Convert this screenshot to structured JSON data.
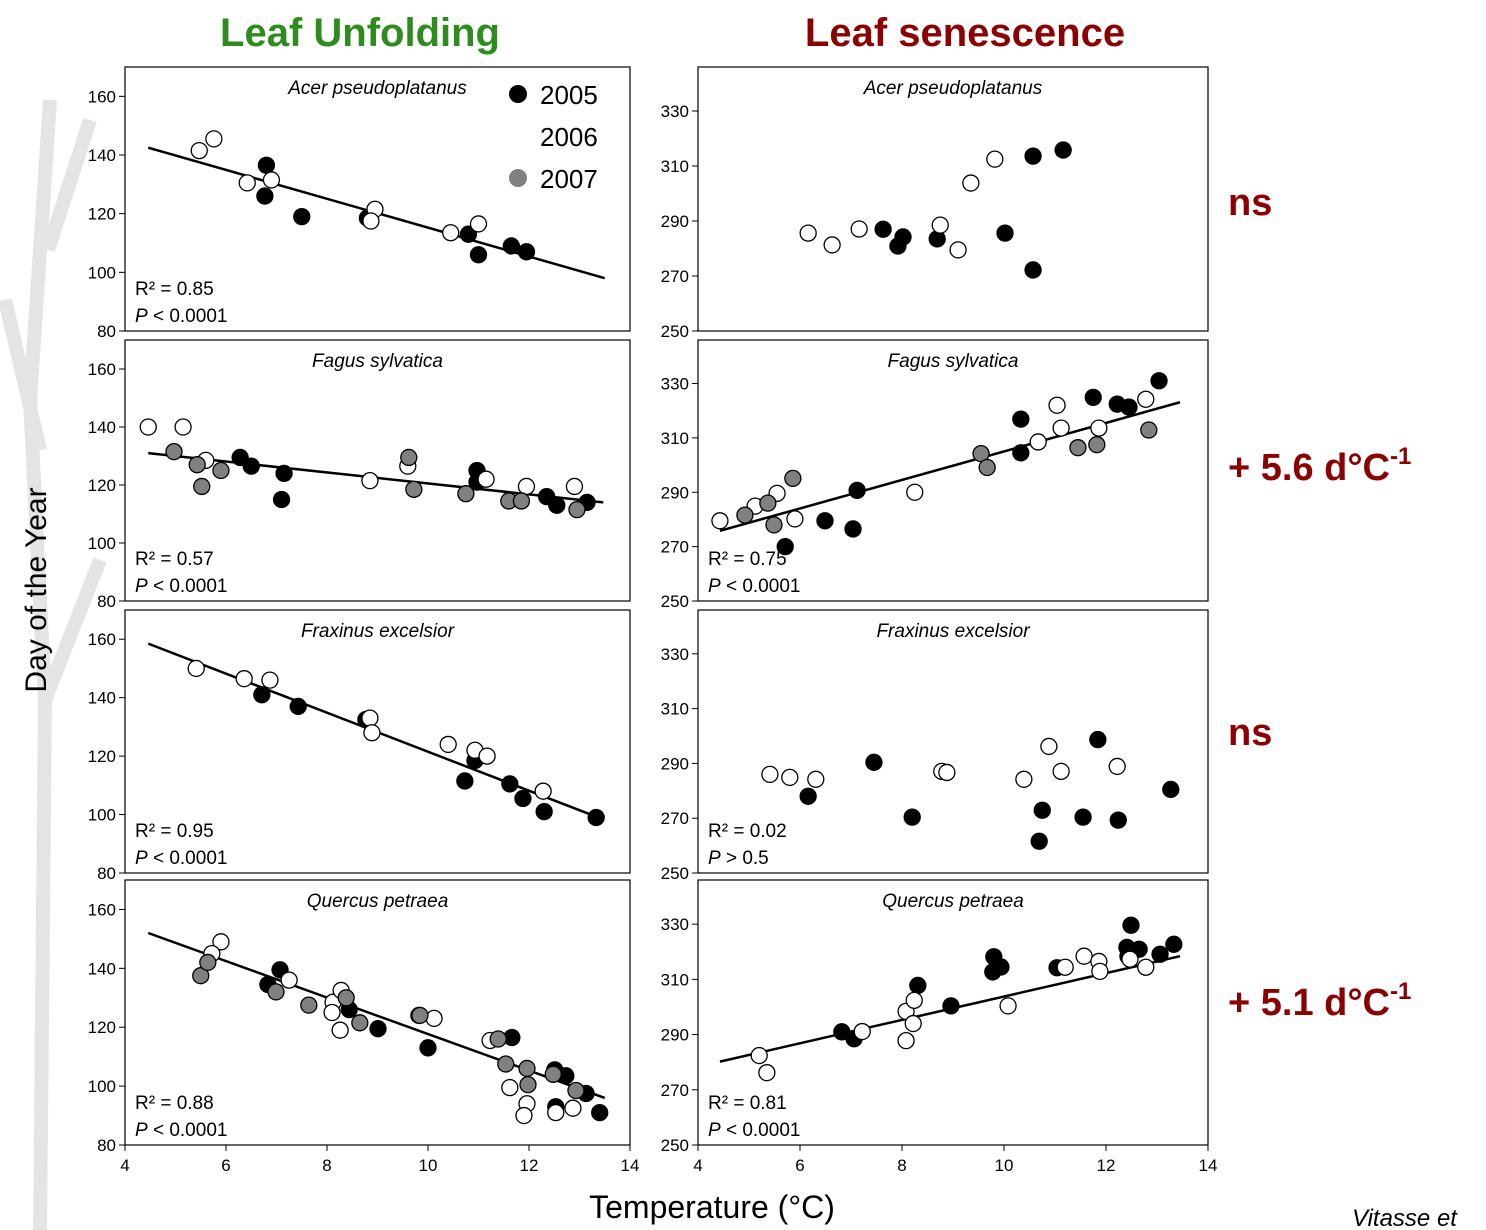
{
  "column_titles": [
    {
      "text": "Leaf Unfolding",
      "color": "#2e8b1e"
    },
    {
      "text": "Leaf senescence",
      "color": "#8b0000"
    }
  ],
  "y_label": "Day of the Year",
  "x_label": "Temperature (°C)",
  "annotations": [
    {
      "text": "ns"
    },
    {
      "text": "+ 5.6 d°C",
      "sup": "-1"
    },
    {
      "text": "ns"
    },
    {
      "text": "+ 5.1 d°C",
      "sup": "-1"
    }
  ],
  "citation": "Vitasse et",
  "chart_data": [
    {
      "type": "scatter",
      "title": "Acer pseudoplatanus",
      "xlim": [
        4,
        14
      ],
      "ylim": [
        80,
        170
      ],
      "yticks": [
        80,
        100,
        120,
        140,
        160
      ],
      "legend": "top-right",
      "stats": {
        "r2": "R² = 0.85",
        "p_symbol": "P",
        "p_text": " < 0.0001"
      },
      "fit": {
        "x": [
          4.46,
          13.5
        ],
        "y": [
          142.5,
          98
        ]
      },
      "series": [
        {
          "name": "2005",
          "color": "#000000",
          "x": [
            6.8,
            6.77,
            7.5,
            8.8,
            10.8,
            11.0,
            11.65,
            11.95
          ],
          "values": [
            136.5,
            126,
            119,
            118.5,
            113,
            106,
            109,
            107
          ]
        },
        {
          "name": "2006",
          "color": "#ffffff",
          "x": [
            5.47,
            5.76,
            6.42,
            6.9,
            8.95,
            8.87,
            10.45,
            11.0
          ],
          "values": [
            141.5,
            145.5,
            130.5,
            131.5,
            121.5,
            117.5,
            113.5,
            116.5
          ]
        },
        {
          "name": "2007",
          "color": "#808080",
          "x": [],
          "values": []
        }
      ]
    },
    {
      "type": "scatter",
      "title": "Fagus sylvatica",
      "xlim": [
        4,
        14
      ],
      "ylim": [
        80,
        170
      ],
      "yticks": [
        80,
        100,
        120,
        140,
        160
      ],
      "stats": {
        "r2": "R² = 0.57",
        "p_symbol": "P",
        "p_text": " < 0.0001"
      },
      "fit": {
        "x": [
          4.46,
          13.47
        ],
        "y": [
          131,
          114
        ]
      },
      "series": [
        {
          "color": "#000000",
          "x": [
            6.28,
            6.5,
            7.15,
            7.1,
            10.97,
            10.97,
            12.35,
            12.55,
            13.15
          ],
          "values": [
            129.5,
            126.5,
            124,
            115,
            125,
            121,
            116,
            113,
            114
          ]
        },
        {
          "color": "#ffffff",
          "x": [
            4.46,
            5.15,
            5.6,
            8.85,
            9.6,
            11.15,
            11.95,
            12.9
          ],
          "values": [
            140,
            140,
            128.5,
            121.5,
            126.5,
            122,
            119.5,
            119.5
          ]
        },
        {
          "color": "#808080",
          "x": [
            4.97,
            5.43,
            5.52,
            5.9,
            9.62,
            9.72,
            10.75,
            11.6,
            11.85,
            12.95
          ],
          "values": [
            131.5,
            127,
            119.5,
            125,
            129.5,
            118.5,
            117,
            114.5,
            114.5,
            111.5
          ]
        }
      ]
    },
    {
      "type": "scatter",
      "title": "Fraxinus excelsior",
      "xlim": [
        4,
        14
      ],
      "ylim": [
        80,
        170
      ],
      "yticks": [
        80,
        100,
        120,
        140,
        160
      ],
      "stats": {
        "r2": "R² = 0.95",
        "p_symbol": "P",
        "p_text": " < 0.0001"
      },
      "fit": {
        "x": [
          4.46,
          13.37
        ],
        "y": [
          158.5,
          99
        ]
      },
      "series": [
        {
          "color": "#000000",
          "x": [
            6.71,
            7.43,
            8.77,
            10.73,
            10.93,
            11.62,
            11.88,
            12.3,
            13.33
          ],
          "values": [
            141,
            137,
            132.5,
            111.5,
            118.5,
            110.5,
            105.5,
            101,
            99
          ]
        },
        {
          "color": "#ffffff",
          "x": [
            5.41,
            6.36,
            6.87,
            8.85,
            8.89,
            10.4,
            10.93,
            11.17,
            12.28
          ],
          "values": [
            150,
            146.5,
            146,
            133,
            128,
            124,
            122,
            120,
            108
          ]
        }
      ]
    },
    {
      "type": "scatter",
      "title": "Quercus petraea",
      "xlim": [
        4,
        14
      ],
      "ylim": [
        80,
        170
      ],
      "yticks": [
        80,
        100,
        120,
        140,
        160
      ],
      "xticks": [
        4,
        6,
        8,
        10,
        12,
        14
      ],
      "stats": {
        "r2": "R² = 0.88",
        "p_symbol": "P",
        "p_text": " < 0.0001"
      },
      "fit": {
        "x": [
          4.46,
          13.5
        ],
        "y": [
          152,
          96
        ]
      },
      "series": [
        {
          "color": "#000000",
          "x": [
            6.83,
            7.07,
            8.44,
            9.01,
            9.82,
            10.0,
            11.66,
            12.51,
            12.73,
            13.13,
            13.4,
            12.53
          ],
          "values": [
            134.5,
            139.5,
            126,
            119.5,
            124,
            113,
            116.5,
            105.5,
            103.5,
            97.5,
            91,
            93
          ]
        },
        {
          "color": "#ffffff",
          "x": [
            5.9,
            5.72,
            7.25,
            8.12,
            8.1,
            8.26,
            8.28,
            10.12,
            11.23,
            11.62,
            11.96,
            11.9,
            12.53,
            12.87
          ],
          "values": [
            149,
            145,
            136,
            128.5,
            125,
            119,
            132.5,
            123,
            115.5,
            99.5,
            94,
            90,
            91,
            92.5
          ]
        },
        {
          "color": "#808080",
          "x": [
            5.5,
            5.64,
            6.99,
            7.64,
            8.38,
            8.65,
            9.84,
            11.39,
            11.54,
            11.96,
            11.98,
            12.48,
            12.93
          ],
          "values": [
            137.5,
            142,
            132,
            127.5,
            130,
            121.5,
            124,
            116,
            107.5,
            106,
            100.5,
            104,
            98.5
          ]
        }
      ]
    },
    {
      "type": "scatter",
      "title": "Acer pseudoplatanus",
      "xlim": [
        4,
        14
      ],
      "ylim": [
        250,
        346
      ],
      "yticks": [
        250,
        270,
        290,
        310,
        330
      ],
      "series": [
        {
          "color": "#000000",
          "x": [
            7.63,
            8.02,
            7.92,
            8.69,
            10.02,
            10.57,
            11.16,
            10.57
          ],
          "values": [
            287,
            284.2,
            280.9,
            283.5,
            285.6,
            313.6,
            315.8,
            272.2
          ]
        },
        {
          "color": "#ffffff",
          "x": [
            6.16,
            6.63,
            7.16,
            8.75,
            9.1,
            9.35,
            9.82
          ],
          "values": [
            285.6,
            281.3,
            287.1,
            288.5,
            279.5,
            303.8,
            312.5
          ]
        }
      ]
    },
    {
      "type": "scatter",
      "title": "Fagus sylvatica",
      "xlim": [
        4,
        14
      ],
      "ylim": [
        250,
        346
      ],
      "yticks": [
        250,
        270,
        290,
        310,
        330
      ],
      "stats": {
        "r2": "R² = 0.75",
        "p_symbol": "P",
        "p_text": " < 0.0001"
      },
      "fit": {
        "x": [
          4.43,
          13.45
        ],
        "y": [
          275.8,
          323.1
        ]
      },
      "series": [
        {
          "color": "#000000",
          "x": [
            5.71,
            6.49,
            7.04,
            7.12,
            10.33,
            10.33,
            11.75,
            12.22,
            12.45,
            13.04
          ],
          "values": [
            270,
            279.5,
            276.5,
            290.7,
            316.9,
            304.5,
            324.9,
            322.4,
            321.3,
            331
          ]
        },
        {
          "color": "#ffffff",
          "x": [
            4.43,
            5.12,
            5.55,
            5.9,
            8.25,
            11.04,
            11.12,
            11.86,
            12.78,
            10.67
          ],
          "values": [
            279.5,
            284.9,
            289.6,
            280.2,
            290,
            322,
            313.6,
            313.6,
            324.2,
            308.5
          ]
        },
        {
          "color": "#808080",
          "x": [
            4.92,
            5.49,
            5.37,
            5.86,
            9.55,
            9.67,
            11.45,
            11.82,
            12.84
          ],
          "values": [
            281.6,
            278,
            286,
            295.1,
            304.2,
            299.1,
            306.4,
            307.5,
            312.9
          ]
        }
      ]
    },
    {
      "type": "scatter",
      "title": "Fraxinus excelsior",
      "xlim": [
        4,
        14
      ],
      "ylim": [
        250,
        346
      ],
      "yticks": [
        250,
        270,
        290,
        310,
        330
      ],
      "stats": {
        "r2": "R² = 0.02",
        "p_symbol": "P",
        "p_text": " > 0.5"
      },
      "series": [
        {
          "color": "#000000",
          "x": [
            7.45,
            6.16,
            8.2,
            10.75,
            11.55,
            11.84,
            12.24,
            13.27,
            10.69
          ],
          "values": [
            290.4,
            278,
            270.4,
            272.9,
            270.4,
            298.7,
            269.3,
            280.5,
            261.6
          ]
        },
        {
          "color": "#ffffff",
          "x": [
            5.41,
            5.8,
            6.31,
            8.78,
            8.88,
            10.39,
            10.88,
            11.12,
            12.22
          ],
          "values": [
            286,
            284.9,
            284.2,
            287.1,
            286.7,
            284.2,
            296.2,
            287.1,
            288.9
          ]
        }
      ]
    },
    {
      "type": "scatter",
      "title": "Quercus petraea",
      "xlim": [
        4,
        14
      ],
      "ylim": [
        250,
        346
      ],
      "yticks": [
        250,
        270,
        290,
        310,
        330
      ],
      "xticks": [
        4,
        6,
        8,
        10,
        12,
        14
      ],
      "stats": {
        "r2": "R² = 0.81",
        "p_symbol": "P",
        "p_text": " < 0.0001"
      },
      "fit": {
        "x": [
          4.43,
          13.45
        ],
        "y": [
          280.2,
          318.4
        ]
      },
      "series": [
        {
          "color": "#000000",
          "x": [
            6.82,
            7.06,
            8.31,
            8.96,
            9.8,
            9.94,
            9.78,
            11.04,
            12.49,
            12.41,
            12.65,
            13.06,
            13.33,
            12.43
          ],
          "values": [
            291,
            288.5,
            307.8,
            300.4,
            318.2,
            314.5,
            312.7,
            314.2,
            329.6,
            321.6,
            320.9,
            319.1,
            322.7,
            318.4
          ]
        },
        {
          "color": "#ffffff",
          "x": [
            5.2,
            5.35,
            7.22,
            8.08,
            8.24,
            8.22,
            8.08,
            10.08,
            11.2,
            11.57,
            11.86,
            11.88,
            12.78,
            12.47
          ],
          "values": [
            282.4,
            276.2,
            291.1,
            298.4,
            302.4,
            294,
            287.8,
            300.4,
            314.4,
            318.4,
            316.5,
            312.9,
            314.4,
            317.3
          ]
        }
      ]
    }
  ]
}
